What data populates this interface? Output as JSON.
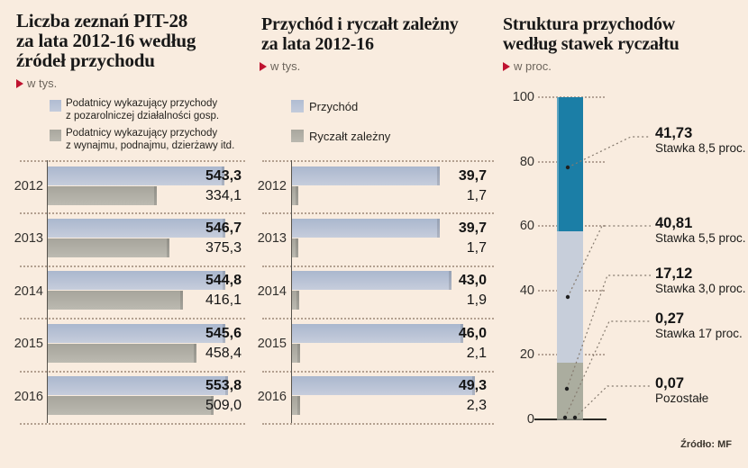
{
  "colors": {
    "background": "#f9ecdf",
    "accent_red": "#bf1330",
    "bar_blue": "#b7c1d6",
    "bar_gray": "#aeaca3",
    "stack_teal": "#1b7ea6",
    "stack_blue": "#c7ceda",
    "stack_gray": "#abad9f"
  },
  "panels": {
    "left": {
      "title_lines": [
        "Liczba zeznań PIT-28",
        "za lata 2012-16 według",
        "źródeł przychodu"
      ],
      "unit": "w tys.",
      "legend": [
        {
          "lines": [
            "Podatnicy wykazujący przychody",
            "z pozarolniczej działalności gosp."
          ]
        },
        {
          "lines": [
            "Podatnicy wykazujący przychody",
            "z wynajmu, podnajmu, dzierżawy itd."
          ]
        }
      ]
    },
    "middle": {
      "title_lines": [
        "Przychód i ryczałt zależny",
        "za lata 2012-16"
      ],
      "unit": "w tys.",
      "legend": [
        {
          "label": "Przychód"
        },
        {
          "label": "Ryczałt zależny"
        }
      ]
    },
    "right": {
      "title_lines": [
        "Struktura przychodów",
        "według stawek ryczałtu"
      ],
      "unit": "w proc."
    }
  },
  "chart_data": [
    {
      "type": "bar",
      "orientation": "horizontal",
      "title": "Liczba zeznań PIT-28 za lata 2012-16 według źródeł przychodu",
      "unit": "w tys.",
      "categories": [
        "2012",
        "2013",
        "2014",
        "2015",
        "2016"
      ],
      "series": [
        {
          "name": "Podatnicy wykazujący przychody z pozarolniczej działalności gosp.",
          "values": [
            543.3,
            546.7,
            544.8,
            545.6,
            553.8
          ],
          "labels": [
            "543,3",
            "546,7",
            "544,8",
            "545,6",
            "553,8"
          ]
        },
        {
          "name": "Podatnicy wykazujący przychody z wynajmu, podnajmu, dzierżawy itd.",
          "values": [
            334.1,
            375.3,
            416.1,
            458.4,
            509.0
          ],
          "labels": [
            "334,1",
            "375,3",
            "416,1",
            "458,4",
            "509,0"
          ]
        }
      ],
      "xlim": [
        0,
        560
      ],
      "grid": "dotted-row-separators",
      "legend_position": "top"
    },
    {
      "type": "bar",
      "orientation": "horizontal",
      "title": "Przychód i ryczałt zależny za lata 2012-16",
      "unit": "w tys.",
      "categories": [
        "2012",
        "2013",
        "2014",
        "2015",
        "2016"
      ],
      "series": [
        {
          "name": "Przychód",
          "values": [
            39.7,
            39.7,
            43.0,
            46.0,
            49.3
          ],
          "labels": [
            "39,7",
            "39,7",
            "43,0",
            "46,0",
            "49,3"
          ]
        },
        {
          "name": "Ryczałt zależny",
          "values": [
            1.7,
            1.7,
            1.9,
            2.1,
            2.3
          ],
          "labels": [
            "1,7",
            "1,7",
            "1,9",
            "2,1",
            "2,3"
          ]
        }
      ],
      "xlim": [
        0,
        50
      ],
      "grid": "dotted-row-separators",
      "legend_position": "top"
    },
    {
      "type": "bar",
      "subtype": "stacked-single-column",
      "title": "Struktura przychodów według stawek ryczałtu",
      "unit": "w proc.",
      "ylim": [
        0,
        100
      ],
      "yticks": [
        100,
        80,
        60,
        40,
        20,
        0
      ],
      "segments": [
        {
          "label": "Stawka 8,5 proc.",
          "value": 41.73,
          "display": "41,73",
          "color": "#1b7ea6"
        },
        {
          "label": "Stawka 5,5 proc.",
          "value": 40.81,
          "display": "40,81",
          "color": "#c7ceda"
        },
        {
          "label": "Stawka 3,0 proc.",
          "value": 17.12,
          "display": "17,12",
          "color": "#abad9f"
        },
        {
          "label": "Stawka 17 proc.",
          "value": 0.27,
          "display": "0,27",
          "color": "#8a8c82"
        },
        {
          "label": "Pozostałe",
          "value": 0.07,
          "display": "0,07",
          "color": "#6f7168"
        }
      ]
    }
  ],
  "source": "Źródło: MF"
}
